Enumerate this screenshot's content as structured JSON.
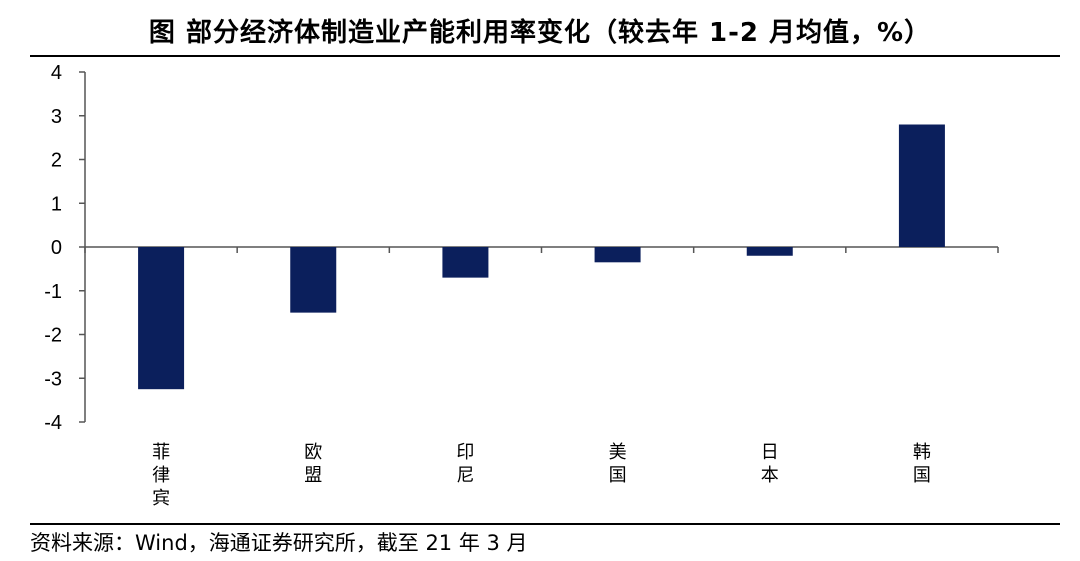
{
  "title": "图  部分经济体制造业产能利用率变化（较去年 1-2 月均值，%）",
  "source": "资料来源：Wind，海通证券研究所，截至 21 年 3 月",
  "chart_data": {
    "type": "bar",
    "title": "部分经济体制造业产能利用率变化（较去年 1-2 月均值，%）",
    "categories": [
      "菲律宾",
      "欧盟",
      "印尼",
      "美国",
      "日本",
      "韩国"
    ],
    "values": [
      -3.25,
      -1.5,
      -0.7,
      -0.35,
      -0.2,
      2.8
    ],
    "ylim": [
      -4,
      4
    ],
    "yticks": [
      "4",
      "3",
      "2",
      "1",
      "0",
      "-1",
      "-2",
      "-3",
      "-4"
    ],
    "bar_color": "#0b1f5c",
    "xlabel": "",
    "ylabel": ""
  }
}
